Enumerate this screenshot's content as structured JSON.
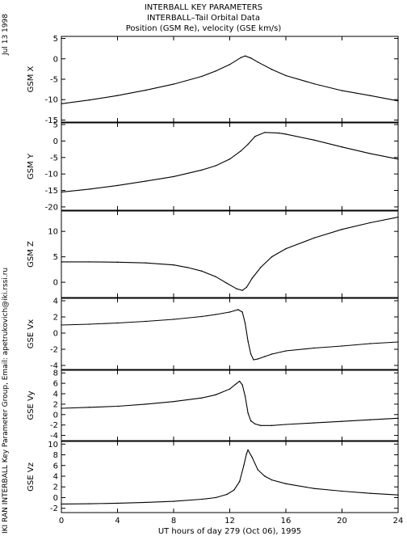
{
  "header": {
    "title_line1": "INTERBALL KEY PARAMETERS",
    "title_line2": "INTERBALL–Tail Orbital Data",
    "title_line3": "Position (GSM Re), velocity (GSE km/s)"
  },
  "side_labels": {
    "date": "Jul 13 1998",
    "credit": "IKI RAN INTERBALL Key Parameter Group, Email: apetrukovich@iki.rssi.ru"
  },
  "chart_data": {
    "type": "line",
    "xlabel": "UT hours of day 279 (Oct 06), 1995",
    "xlim": [
      0,
      24
    ],
    "xticks": [
      0,
      4,
      8,
      12,
      16,
      20,
      24
    ],
    "xtick_labels": [
      "0",
      "4",
      "8",
      "12",
      "16",
      "20",
      "24"
    ],
    "panels": [
      {
        "ylabel": "GSM X",
        "ylim": [
          -15.5,
          5.5
        ],
        "yticks": [
          5,
          0,
          -5,
          -10,
          -15
        ],
        "ytick_labels": [
          "5",
          "0",
          "-5",
          "-10",
          "-15"
        ],
        "x": [
          0,
          2,
          4,
          6,
          8,
          10,
          11,
          12,
          12.8,
          13.1,
          13.5,
          14,
          15,
          16,
          18,
          20,
          22,
          24
        ],
        "y": [
          -11,
          -10.1,
          -9,
          -7.7,
          -6.2,
          -4.3,
          -3,
          -1.4,
          0.3,
          0.7,
          0.2,
          -0.8,
          -2.6,
          -4.1,
          -6.1,
          -7.8,
          -9,
          -10.3
        ]
      },
      {
        "ylabel": "GSM Y",
        "ylim": [
          -21,
          5.5
        ],
        "yticks": [
          5,
          0,
          -5,
          -10,
          -15,
          -20
        ],
        "ytick_labels": [
          "5",
          "0",
          "-5",
          "-10",
          "-15",
          "-20"
        ],
        "x": [
          0,
          2,
          4,
          6,
          8,
          10,
          11,
          12,
          12.8,
          13.3,
          13.8,
          14.5,
          15.5,
          16,
          18,
          20,
          22,
          24
        ],
        "y": [
          -15.5,
          -14.6,
          -13.5,
          -12.2,
          -10.8,
          -8.8,
          -7.5,
          -5.5,
          -3,
          -1,
          1.4,
          2.6,
          2.4,
          2.1,
          0.3,
          -1.8,
          -3.8,
          -5.5
        ]
      },
      {
        "ylabel": "GSM Z",
        "ylim": [
          -3,
          14
        ],
        "yticks": [
          10,
          5,
          0
        ],
        "ytick_labels": [
          "10",
          "5",
          "0"
        ],
        "x": [
          0,
          2,
          4,
          6,
          8,
          9,
          10,
          11,
          11.8,
          12.5,
          12.9,
          13.2,
          13.6,
          14.2,
          15,
          16,
          18,
          20,
          22,
          24
        ],
        "y": [
          4,
          4,
          3.95,
          3.8,
          3.4,
          2.9,
          2.2,
          1.1,
          -0.2,
          -1.3,
          -1.6,
          -1,
          0.8,
          2.9,
          5,
          6.6,
          8.7,
          10.4,
          11.7,
          12.8
        ]
      },
      {
        "ylabel": "GSE Vx",
        "ylim": [
          -4.5,
          4.3
        ],
        "yticks": [
          4,
          2,
          0,
          -2,
          -4
        ],
        "ytick_labels": [
          "4",
          "2",
          "0",
          "-2",
          "-4"
        ],
        "x": [
          0,
          2,
          4,
          6,
          8,
          10,
          11,
          12,
          12.6,
          12.9,
          13.1,
          13.3,
          13.5,
          13.7,
          14,
          14.5,
          15,
          16,
          18,
          20,
          22,
          24
        ],
        "y": [
          1,
          1.1,
          1.25,
          1.45,
          1.7,
          2.05,
          2.3,
          2.6,
          2.9,
          2.6,
          1.2,
          -1,
          -2.6,
          -3.3,
          -3.2,
          -2.9,
          -2.6,
          -2.2,
          -1.85,
          -1.6,
          -1.3,
          -1.1
        ]
      },
      {
        "ylabel": "GSE Vy",
        "ylim": [
          -5,
          8.5
        ],
        "yticks": [
          8,
          6,
          4,
          2,
          0,
          -2,
          -4
        ],
        "ytick_labels": [
          "8",
          "6",
          "4",
          "2",
          "0",
          "-2",
          "-4"
        ],
        "x": [
          0,
          2,
          4,
          6,
          8,
          10,
          11,
          12,
          12.4,
          12.7,
          12.9,
          13.1,
          13.3,
          13.5,
          13.8,
          14.2,
          15,
          16,
          18,
          20,
          22,
          24
        ],
        "y": [
          1.2,
          1.4,
          1.6,
          2,
          2.5,
          3.2,
          3.8,
          4.9,
          5.8,
          6.4,
          5.7,
          3.5,
          0.3,
          -1.2,
          -1.8,
          -2.1,
          -2.1,
          -1.9,
          -1.6,
          -1.3,
          -1,
          -0.7
        ]
      },
      {
        "ylabel": "GSE Vz",
        "ylim": [
          -2.8,
          10.5
        ],
        "yticks": [
          10,
          8,
          6,
          4,
          2,
          0,
          -2
        ],
        "ytick_labels": [
          "10",
          "8",
          "6",
          "4",
          "2",
          "0",
          "-2"
        ],
        "x": [
          0,
          2,
          4,
          6,
          8,
          10,
          11,
          11.8,
          12.3,
          12.7,
          13,
          13.2,
          13.3,
          13.6,
          14,
          14.5,
          15,
          16,
          18,
          20,
          22,
          24
        ],
        "y": [
          -1.2,
          -1.15,
          -1.05,
          -0.9,
          -0.7,
          -0.3,
          0,
          0.6,
          1.4,
          3,
          6,
          8.2,
          8.9,
          7.5,
          5.2,
          4,
          3.3,
          2.6,
          1.7,
          1.2,
          0.8,
          0.5
        ]
      }
    ]
  }
}
